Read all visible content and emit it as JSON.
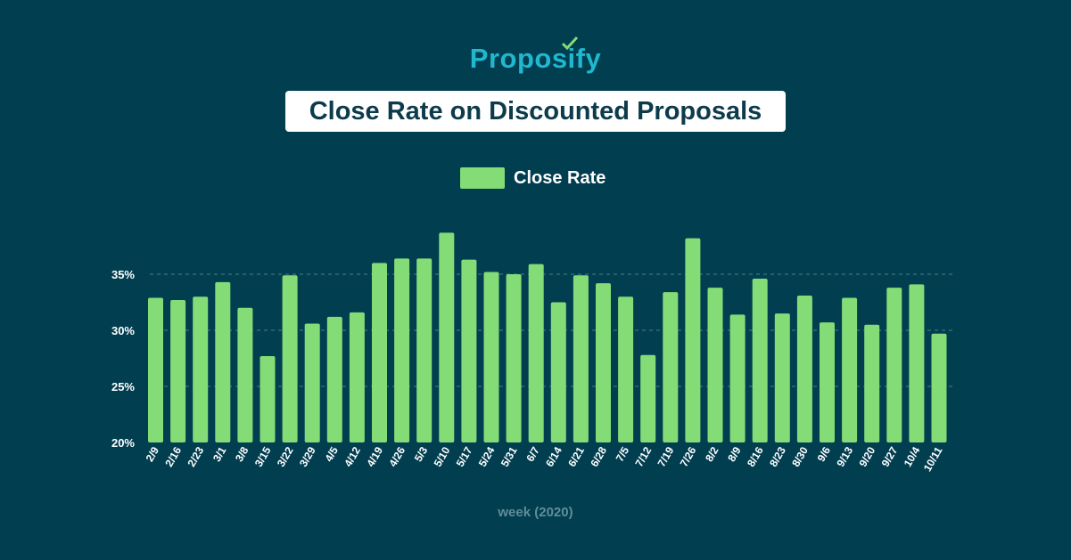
{
  "logo": {
    "text": "Proposify",
    "color": "#1fb8cf",
    "check_color": "#84dc76"
  },
  "chart_data": {
    "type": "bar",
    "title": "Close Rate on Discounted Proposals",
    "xlabel": "week (2020)",
    "ylabel": "",
    "legend": {
      "position": "top",
      "entries": [
        "Close Rate"
      ]
    },
    "ylim": [
      20,
      38.8
    ],
    "yticks": [
      20,
      25,
      30,
      35
    ],
    "ytick_labels": [
      "20%",
      "25%",
      "30%",
      "35%"
    ],
    "grid": "horizontal dashed",
    "bar_color": "#84dc76",
    "categories": [
      "2/9",
      "2/16",
      "2/23",
      "3/1",
      "3/8",
      "3/15",
      "3/22",
      "3/29",
      "4/5",
      "4/12",
      "4/19",
      "4/26",
      "5/3",
      "5/10",
      "5/17",
      "5/24",
      "5/31",
      "6/7",
      "6/14",
      "6/21",
      "6/28",
      "7/5",
      "7/12",
      "7/19",
      "7/26",
      "8/2",
      "8/9",
      "8/16",
      "8/23",
      "8/30",
      "9/6",
      "9/13",
      "9/20",
      "9/27",
      "10/4",
      "10/11"
    ],
    "series": [
      {
        "name": "Close Rate",
        "values": [
          32.9,
          32.7,
          33.0,
          34.3,
          32.0,
          27.7,
          34.9,
          30.6,
          31.2,
          31.6,
          36.0,
          36.4,
          36.4,
          38.7,
          36.3,
          35.2,
          35.0,
          35.9,
          32.5,
          34.9,
          34.2,
          33.0,
          27.8,
          33.4,
          38.2,
          33.8,
          31.4,
          34.6,
          31.5,
          33.1,
          30.7,
          32.9,
          30.5,
          33.8,
          34.1,
          29.7
        ]
      }
    ]
  }
}
